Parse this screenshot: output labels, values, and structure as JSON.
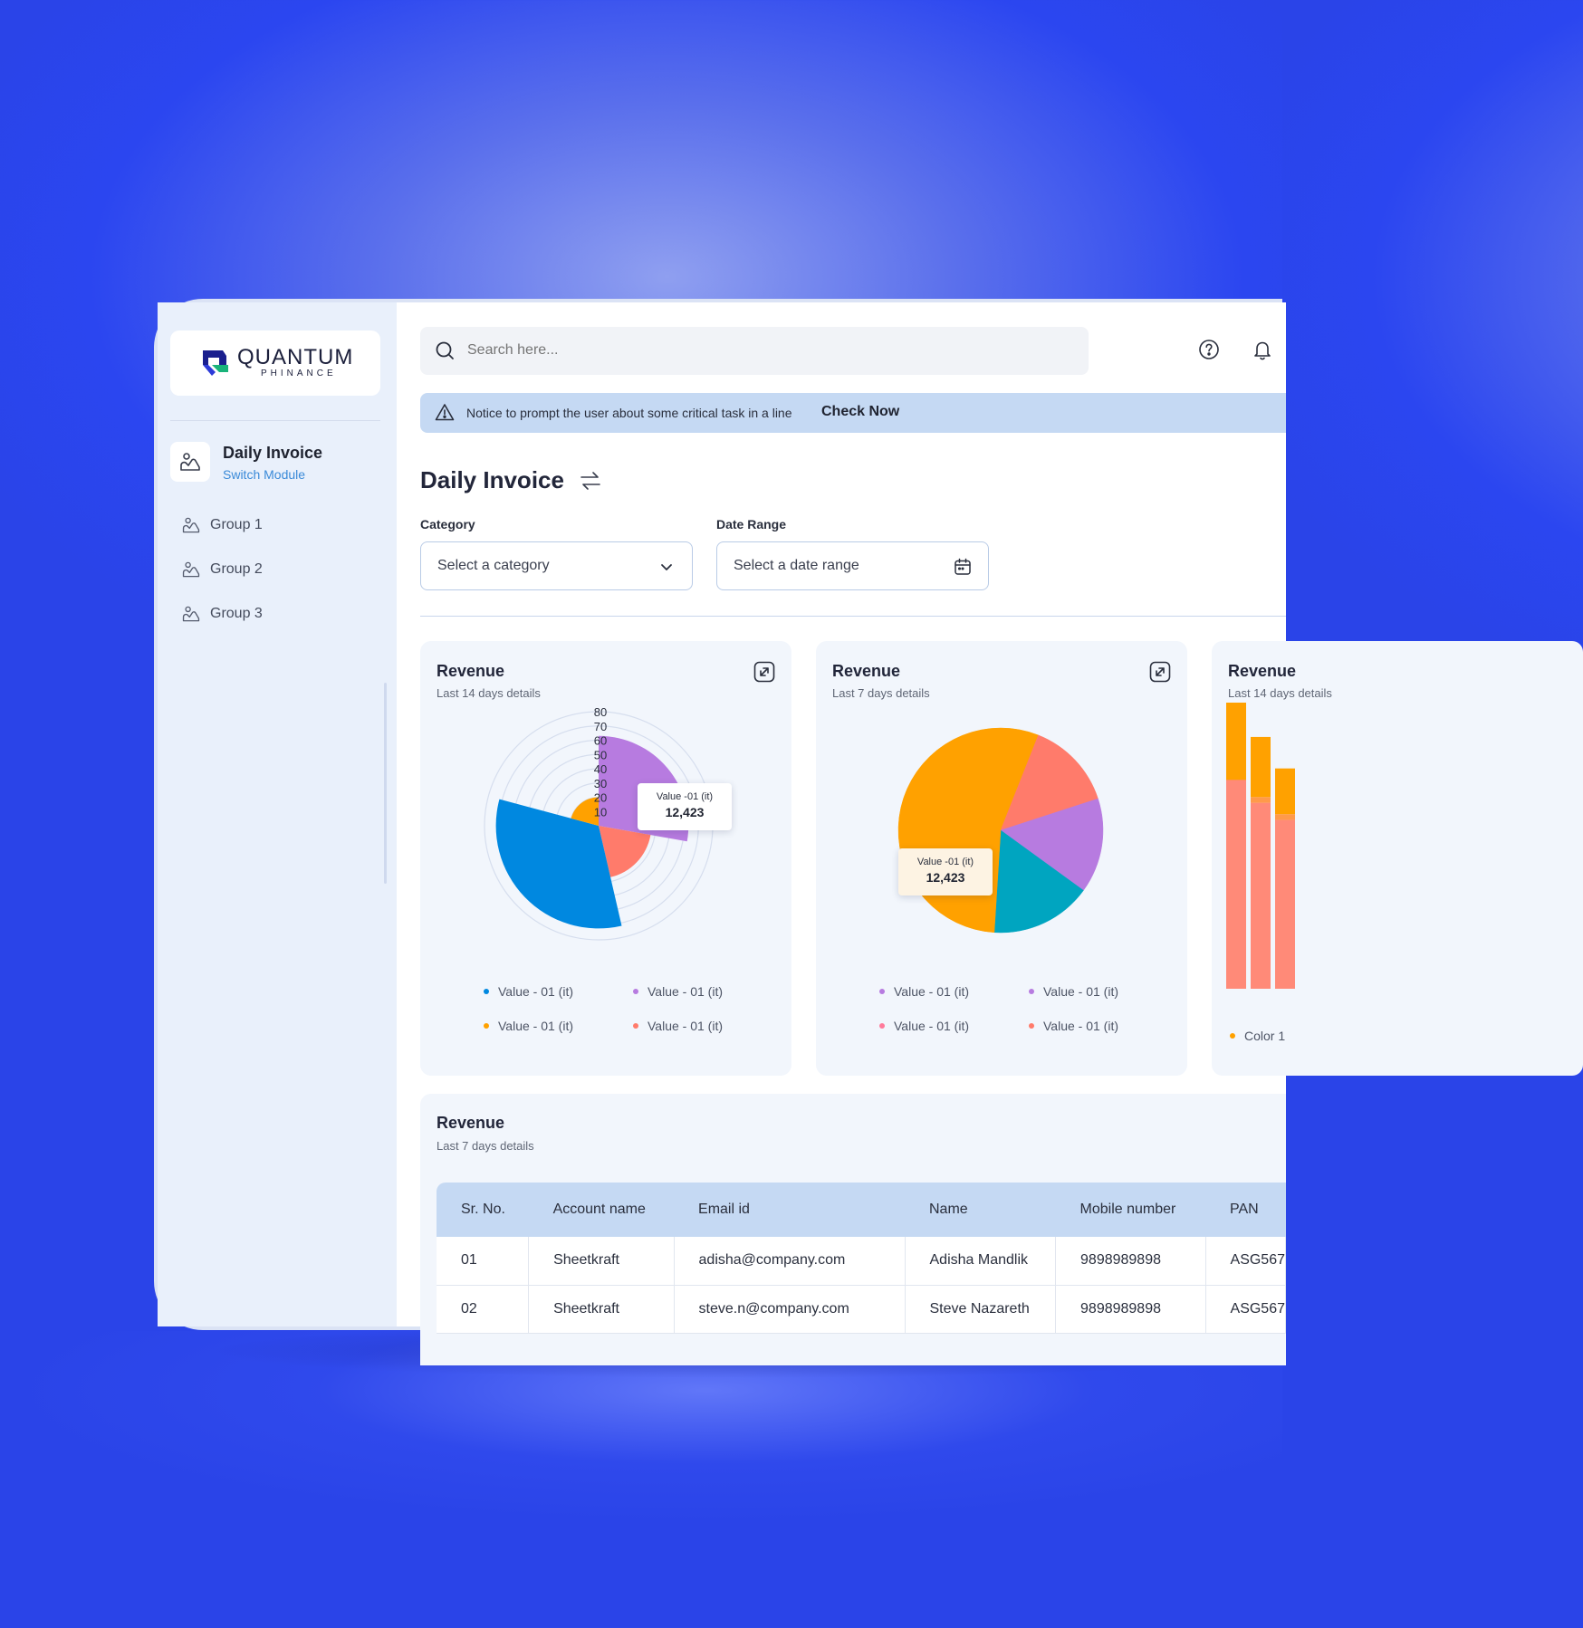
{
  "brand": {
    "name": "QUANTUM",
    "sub": "PHINANCE"
  },
  "sidebar": {
    "module": {
      "title": "Daily Invoice",
      "sub": "Switch Module"
    },
    "items": [
      {
        "label": "Group 1"
      },
      {
        "label": "Group 2"
      },
      {
        "label": "Group 3"
      }
    ]
  },
  "search": {
    "placeholder": "Search here..."
  },
  "notice": {
    "text": "Notice to prompt the user about some critical task in a line",
    "link": "Check Now"
  },
  "page": {
    "title": "Daily Invoice"
  },
  "filters": {
    "category": {
      "label": "Category",
      "value": "Select a category"
    },
    "date": {
      "label": "Date Range",
      "value": "Select a date range"
    }
  },
  "cards": [
    {
      "title": "Revenue",
      "sub": "Last 14 days details",
      "tooltip": {
        "label": "Value -01 (it)",
        "value": "12,423"
      },
      "legend": [
        {
          "label": "Value - 01 (it)",
          "color": "#0088e0"
        },
        {
          "label": "Value - 01 (it)",
          "color": "#b77be0"
        },
        {
          "label": "Value - 01 (it)",
          "color": "#ffa100"
        },
        {
          "label": "Value - 01 (it)",
          "color": "#ff7b6b"
        }
      ]
    },
    {
      "title": "Revenue",
      "sub": "Last 7 days details",
      "tooltip": {
        "label": "Value -01 (it)",
        "value": "12,423"
      },
      "legend": [
        {
          "label": "Value - 01 (it)",
          "color": "#b77be0"
        },
        {
          "label": "Value - 01 (it)",
          "color": "#b77be0"
        },
        {
          "label": "Value - 01 (it)",
          "color": "#ff7b9b"
        },
        {
          "label": "Value - 01 (it)",
          "color": "#ff7b6b"
        }
      ]
    },
    {
      "title": "Revenue",
      "sub": "Last 14 days details",
      "legend": [
        {
          "label": "Color 1",
          "color": "#ffa100"
        }
      ]
    }
  ],
  "chart_data": [
    {
      "type": "radial-bar",
      "radial_ticks": [
        "10",
        "20",
        "30",
        "40",
        "50",
        "60",
        "70",
        "80"
      ],
      "rlim": [
        0,
        80
      ],
      "segments": [
        {
          "start_deg": 0,
          "end_deg": 100,
          "value": 63,
          "color": "#b77be0"
        },
        {
          "start_deg": 100,
          "end_deg": 167,
          "value": 37,
          "color": "#ff7b6b"
        },
        {
          "start_deg": 167,
          "end_deg": 285,
          "value": 72,
          "color": "#0088e0"
        },
        {
          "start_deg": 285,
          "end_deg": 360,
          "value": 20,
          "color": "#ffa100"
        }
      ]
    },
    {
      "type": "pie",
      "slices": [
        {
          "value": 6,
          "color": "#ffa100"
        },
        {
          "value": 14,
          "color": "#ff7b6b"
        },
        {
          "value": 15,
          "color": "#b77be0"
        },
        {
          "value": 16,
          "color": "#00a5c0"
        },
        {
          "value": 49,
          "color": "#ffa100"
        }
      ]
    },
    {
      "type": "bar",
      "stacked": true,
      "series": [
        {
          "name": "Color 1",
          "values": [
            0.81,
            0.65,
            0.59
          ],
          "color": "#ff8a78"
        },
        {
          "values": [
            0.73,
            0.67,
            0.61
          ],
          "color": "#ff9a4a"
        },
        {
          "values": [
            1.0,
            0.88,
            0.77
          ],
          "color": "#ffa100"
        }
      ]
    }
  ],
  "table": {
    "title": "Revenue",
    "sub": "Last 7 days details",
    "columns": [
      "Sr. No.",
      "Account name",
      "Email id",
      "Name",
      "Mobile number",
      "PAN"
    ],
    "rows": [
      [
        "01",
        "Sheetkraft",
        "adisha@company.com",
        "Adisha Mandlik",
        "9898989898",
        "ASG567"
      ],
      [
        "02",
        "Sheetkraft",
        "steve.n@company.com",
        "Steve Nazareth",
        "9898989898",
        "ASG567"
      ]
    ]
  }
}
